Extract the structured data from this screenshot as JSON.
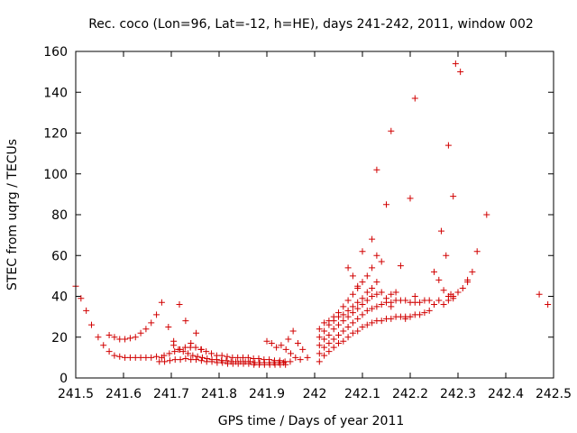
{
  "chart_data": {
    "type": "scatter",
    "title": "Rec. coco (Lon=96, Lat=-12, h=HE), days 241-242, 2011, window 002",
    "xlabel": "GPS time / Days of year 2011",
    "ylabel": "STEC from uqrg / TECUs",
    "xlim": [
      241.5,
      242.5
    ],
    "ylim": [
      0,
      160
    ],
    "xticks": [
      241.5,
      241.6,
      241.7,
      241.8,
      241.9,
      242.0,
      242.1,
      242.2,
      242.3,
      242.4,
      242.5
    ],
    "xtick_labels": [
      "241.5",
      "241.6",
      "241.7",
      "241.8",
      "241.9",
      "242",
      "242.1",
      "242.2",
      "242.3",
      "242.4",
      "242.5"
    ],
    "yticks": [
      0,
      20,
      40,
      60,
      80,
      100,
      120,
      140,
      160
    ],
    "ytick_labels": [
      "0",
      "20",
      "40",
      "60",
      "80",
      "100",
      "120",
      "140",
      "160"
    ],
    "grid": false,
    "legend": "none",
    "marker": "plus",
    "color": "#d10000",
    "points": [
      [
        241.5,
        45
      ],
      [
        241.511,
        39
      ],
      [
        241.522,
        33
      ],
      [
        241.533,
        26
      ],
      [
        241.547,
        20
      ],
      [
        241.558,
        16
      ],
      [
        241.57,
        13
      ],
      [
        241.581,
        11
      ],
      [
        241.592,
        10.5
      ],
      [
        241.603,
        10
      ],
      [
        241.614,
        10
      ],
      [
        241.625,
        10
      ],
      [
        241.636,
        10
      ],
      [
        241.647,
        10
      ],
      [
        241.658,
        10
      ],
      [
        241.669,
        10.5
      ],
      [
        241.68,
        10
      ],
      [
        241.57,
        21
      ],
      [
        241.581,
        20
      ],
      [
        241.592,
        19
      ],
      [
        241.603,
        19
      ],
      [
        241.614,
        19.5
      ],
      [
        241.625,
        20
      ],
      [
        241.636,
        22
      ],
      [
        241.647,
        24
      ],
      [
        241.658,
        27
      ],
      [
        241.669,
        31
      ],
      [
        241.68,
        37
      ],
      [
        241.717,
        36
      ],
      [
        241.73,
        28
      ],
      [
        241.694,
        25
      ],
      [
        241.705,
        18
      ],
      [
        241.741,
        17
      ],
      [
        241.752,
        22
      ],
      [
        241.763,
        14
      ],
      [
        241.675,
        8
      ],
      [
        241.686,
        8
      ],
      [
        241.697,
        8.5
      ],
      [
        241.708,
        9
      ],
      [
        241.719,
        9
      ],
      [
        241.73,
        9.5
      ],
      [
        241.741,
        9
      ],
      [
        241.752,
        9
      ],
      [
        241.763,
        8.5
      ],
      [
        241.774,
        8
      ],
      [
        241.785,
        8
      ],
      [
        241.796,
        7.5
      ],
      [
        241.807,
        7.5
      ],
      [
        241.818,
        7
      ],
      [
        241.829,
        7
      ],
      [
        241.84,
        7
      ],
      [
        241.851,
        7
      ],
      [
        241.862,
        7
      ],
      [
        241.873,
        6.5
      ],
      [
        241.884,
        6.5
      ],
      [
        241.895,
        6.5
      ],
      [
        241.906,
        6.5
      ],
      [
        241.917,
        6.5
      ],
      [
        241.928,
        6.5
      ],
      [
        241.939,
        6.5
      ],
      [
        241.685,
        11
      ],
      [
        241.696,
        12
      ],
      [
        241.707,
        13
      ],
      [
        241.718,
        14
      ],
      [
        241.729,
        15
      ],
      [
        241.74,
        15
      ],
      [
        241.751,
        15
      ],
      [
        241.762,
        14
      ],
      [
        241.773,
        13
      ],
      [
        241.784,
        12
      ],
      [
        241.795,
        11
      ],
      [
        241.806,
        11
      ],
      [
        241.817,
        10.5
      ],
      [
        241.828,
        10
      ],
      [
        241.839,
        10
      ],
      [
        241.85,
        10
      ],
      [
        241.861,
        10
      ],
      [
        241.872,
        9.5
      ],
      [
        241.883,
        9.5
      ],
      [
        241.894,
        9
      ],
      [
        241.905,
        9
      ],
      [
        241.916,
        8.5
      ],
      [
        241.927,
        8.5
      ],
      [
        241.938,
        8
      ],
      [
        241.949,
        8
      ],
      [
        241.705,
        16
      ],
      [
        241.715,
        14
      ],
      [
        241.725,
        13
      ],
      [
        241.735,
        12
      ],
      [
        241.745,
        11
      ],
      [
        241.755,
        10.5
      ],
      [
        241.765,
        10
      ],
      [
        241.775,
        9.5
      ],
      [
        241.785,
        9
      ],
      [
        241.795,
        9
      ],
      [
        241.805,
        8.5
      ],
      [
        241.815,
        8.5
      ],
      [
        241.825,
        8
      ],
      [
        241.835,
        8
      ],
      [
        241.845,
        8
      ],
      [
        241.855,
        8
      ],
      [
        241.865,
        8
      ],
      [
        241.875,
        7.5
      ],
      [
        241.885,
        7.5
      ],
      [
        241.895,
        7.5
      ],
      [
        241.905,
        7.5
      ],
      [
        241.915,
        7.5
      ],
      [
        241.925,
        7.5
      ],
      [
        241.935,
        7.5
      ],
      [
        241.9,
        18
      ],
      [
        241.91,
        17
      ],
      [
        241.92,
        15
      ],
      [
        241.93,
        16
      ],
      [
        241.94,
        14
      ],
      [
        241.95,
        12
      ],
      [
        241.96,
        10
      ],
      [
        241.97,
        9
      ],
      [
        241.945,
        19
      ],
      [
        241.955,
        23
      ],
      [
        241.965,
        17
      ],
      [
        241.975,
        14
      ],
      [
        241.985,
        10
      ],
      [
        242.01,
        8
      ],
      [
        242.02,
        11
      ],
      [
        242.03,
        13
      ],
      [
        242.04,
        15
      ],
      [
        242.05,
        17
      ],
      [
        242.06,
        18
      ],
      [
        242.07,
        20
      ],
      [
        242.08,
        22
      ],
      [
        242.09,
        23
      ],
      [
        242.1,
        25
      ],
      [
        242.11,
        26
      ],
      [
        242.12,
        27
      ],
      [
        242.13,
        28
      ],
      [
        242.14,
        28
      ],
      [
        242.15,
        29
      ],
      [
        242.16,
        29
      ],
      [
        242.17,
        30
      ],
      [
        242.18,
        30
      ],
      [
        242.19,
        30
      ],
      [
        242.2,
        30
      ],
      [
        242.21,
        31
      ],
      [
        242.22,
        31
      ],
      [
        242.23,
        32
      ],
      [
        242.24,
        33
      ],
      [
        242.01,
        12
      ],
      [
        242.02,
        15
      ],
      [
        242.03,
        17
      ],
      [
        242.04,
        19
      ],
      [
        242.05,
        21
      ],
      [
        242.06,
        23
      ],
      [
        242.07,
        25
      ],
      [
        242.08,
        27
      ],
      [
        242.09,
        29
      ],
      [
        242.1,
        31
      ],
      [
        242.11,
        33
      ],
      [
        242.12,
        34
      ],
      [
        242.13,
        35
      ],
      [
        242.14,
        36
      ],
      [
        242.15,
        37
      ],
      [
        242.16,
        37
      ],
      [
        242.17,
        38
      ],
      [
        242.18,
        38
      ],
      [
        242.19,
        38
      ],
      [
        242.2,
        37
      ],
      [
        242.21,
        37
      ],
      [
        242.22,
        37
      ],
      [
        242.23,
        38
      ],
      [
        242.24,
        38
      ],
      [
        242.01,
        16
      ],
      [
        242.02,
        19
      ],
      [
        242.03,
        21
      ],
      [
        242.04,
        24
      ],
      [
        242.05,
        26
      ],
      [
        242.06,
        28
      ],
      [
        242.07,
        30
      ],
      [
        242.08,
        32
      ],
      [
        242.09,
        34
      ],
      [
        242.1,
        36
      ],
      [
        242.11,
        38
      ],
      [
        242.12,
        40
      ],
      [
        242.13,
        41
      ],
      [
        242.14,
        42
      ],
      [
        242.15,
        39
      ],
      [
        242.16,
        41
      ],
      [
        242.17,
        42
      ],
      [
        242.01,
        20
      ],
      [
        242.02,
        23
      ],
      [
        242.03,
        26
      ],
      [
        242.04,
        28
      ],
      [
        242.05,
        30
      ],
      [
        242.06,
        31
      ],
      [
        242.07,
        33
      ],
      [
        242.08,
        35
      ],
      [
        242.09,
        37
      ],
      [
        242.1,
        39
      ],
      [
        242.11,
        42
      ],
      [
        242.12,
        44
      ],
      [
        242.13,
        47
      ],
      [
        242.01,
        24
      ],
      [
        242.02,
        27
      ],
      [
        242.03,
        28
      ],
      [
        242.04,
        30
      ],
      [
        242.05,
        32
      ],
      [
        242.06,
        35
      ],
      [
        242.07,
        38
      ],
      [
        242.08,
        41
      ],
      [
        242.09,
        44
      ],
      [
        242.1,
        47
      ],
      [
        242.11,
        50
      ],
      [
        242.12,
        54
      ],
      [
        242.13,
        60
      ],
      [
        242.07,
        54
      ],
      [
        242.08,
        50
      ],
      [
        242.09,
        45
      ],
      [
        242.1,
        62
      ],
      [
        242.12,
        68
      ],
      [
        242.14,
        57
      ],
      [
        242.15,
        85
      ],
      [
        242.16,
        35
      ],
      [
        242.18,
        55
      ],
      [
        242.19,
        29
      ],
      [
        242.2,
        30
      ],
      [
        242.21,
        40
      ],
      [
        242.25,
        36
      ],
      [
        242.26,
        38
      ],
      [
        242.27,
        36
      ],
      [
        242.28,
        38
      ],
      [
        242.29,
        40
      ],
      [
        242.3,
        42
      ],
      [
        242.31,
        44
      ],
      [
        242.32,
        47
      ],
      [
        242.33,
        52
      ],
      [
        242.34,
        62
      ],
      [
        242.36,
        80
      ],
      [
        242.25,
        52
      ],
      [
        242.26,
        48
      ],
      [
        242.27,
        43
      ],
      [
        242.28,
        40
      ],
      [
        242.265,
        72
      ],
      [
        242.275,
        60
      ],
      [
        242.285,
        41
      ],
      [
        242.29,
        39
      ],
      [
        242.13,
        102
      ],
      [
        242.16,
        121
      ],
      [
        242.2,
        88
      ],
      [
        242.21,
        137
      ],
      [
        242.28,
        114
      ],
      [
        242.29,
        89
      ],
      [
        242.295,
        154
      ],
      [
        242.305,
        150
      ],
      [
        242.32,
        48
      ],
      [
        242.47,
        41
      ],
      [
        242.488,
        36
      ]
    ]
  }
}
